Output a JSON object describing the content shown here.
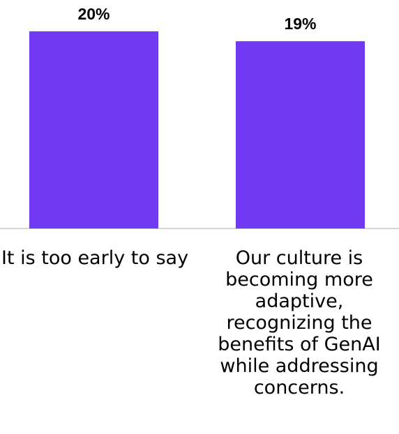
{
  "chart_data": {
    "type": "bar",
    "categories": [
      "It is too early to say",
      "Our culture is becoming more adaptive, recognizing the benefits of GenAI while addressing concerns."
    ],
    "values": [
      20,
      19
    ],
    "value_labels": [
      "20%",
      "19%"
    ],
    "unit": "%",
    "title": "",
    "xlabel": "",
    "ylabel": "",
    "ylim": [
      0,
      20
    ],
    "grid": false,
    "legend": "none",
    "bar_color": "#7239F2",
    "axis_color": "#C8C8C8"
  }
}
